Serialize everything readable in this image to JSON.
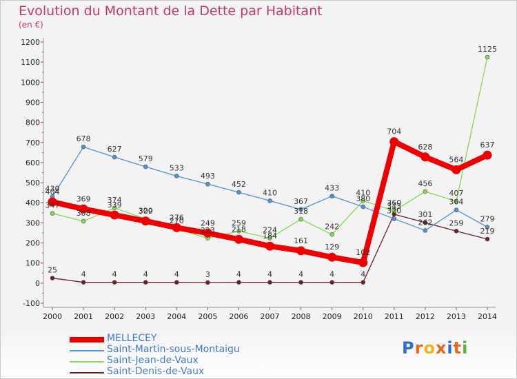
{
  "title": "Evolution du Montant de la Dette par Habitant",
  "subtitle": "(en €)",
  "logo_text": "Proxiti",
  "chart_data": {
    "type": "line",
    "x": [
      2000,
      2001,
      2002,
      2003,
      2004,
      2005,
      2006,
      2007,
      2008,
      2009,
      2010,
      2011,
      2012,
      2013,
      2014
    ],
    "ylim": [
      -100,
      1200
    ],
    "yticks": [
      -100,
      0,
      100,
      200,
      300,
      400,
      500,
      600,
      700,
      800,
      900,
      1000,
      1100,
      1200
    ],
    "grid": false,
    "legend_position": "bottom",
    "series": [
      {
        "name": "MELLECEY",
        "color": "#ee0000",
        "values": [
          404,
          369,
          339,
          309,
          276,
          249,
          218,
          184,
          161,
          129,
          102,
          704,
          628,
          564,
          637
        ]
      },
      {
        "name": "Saint-Martin-sous-Montaigu",
        "color": "#4f93d0",
        "values": [
          430,
          678,
          627,
          579,
          533,
          493,
          452,
          410,
          367,
          433,
          380,
          320,
          262,
          364,
          279
        ]
      },
      {
        "name": "Saint-Jean-de-Vaux",
        "color": "#84d850",
        "values": [
          347,
          308,
          374,
          320,
          270,
          223,
          259,
          224,
          318,
          242,
          410,
          360,
          456,
          407,
          1125
        ]
      },
      {
        "name": "Saint-Denis-de-Vaux",
        "color": "#6e1e26",
        "values": [
          25,
          4,
          4,
          4,
          4,
          3,
          4,
          4,
          4,
          4,
          4,
          343,
          301,
          259,
          219
        ]
      }
    ]
  }
}
